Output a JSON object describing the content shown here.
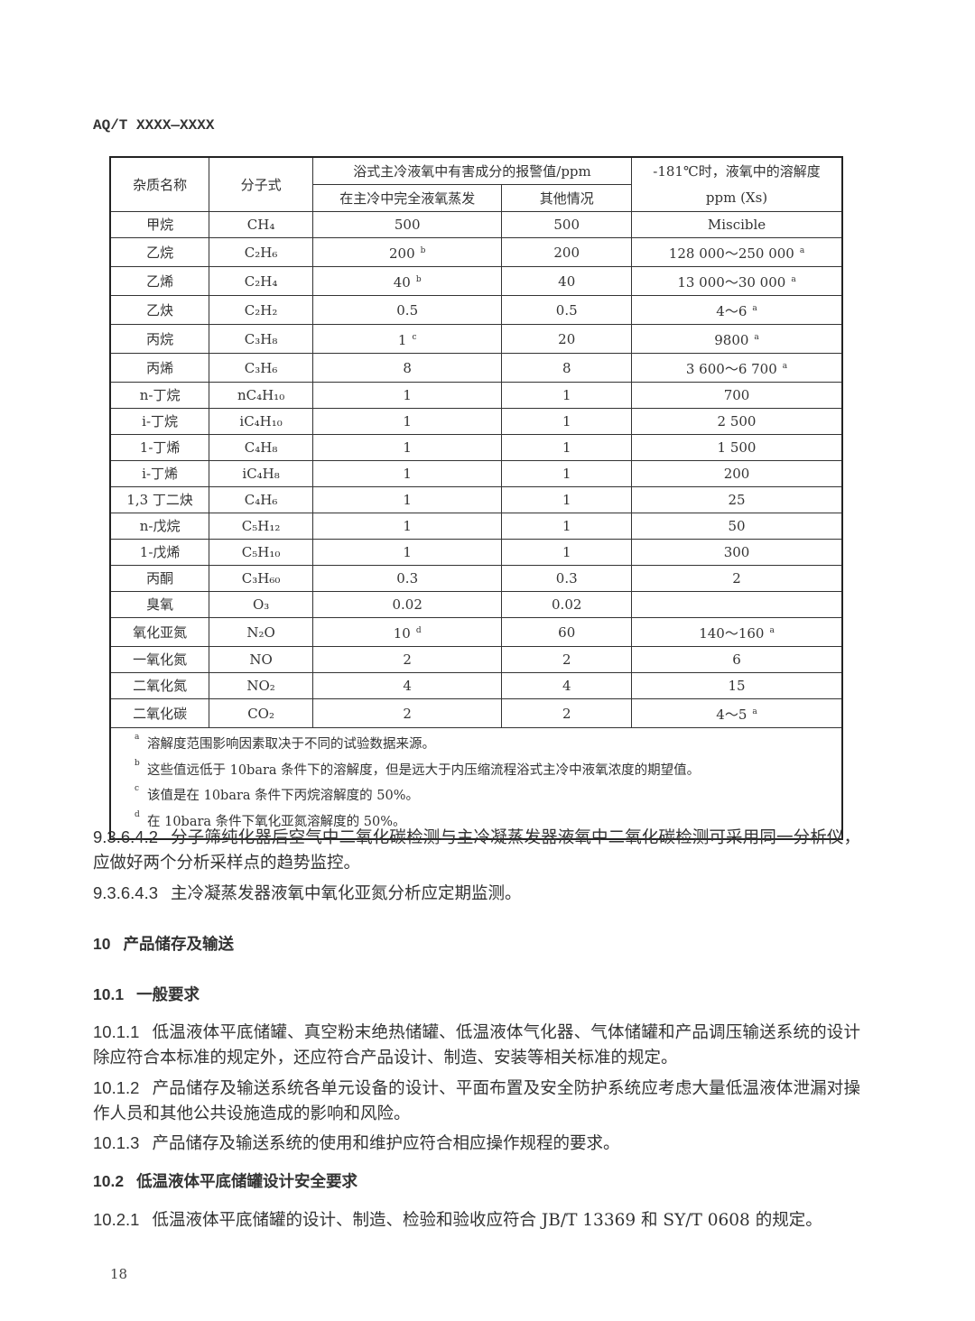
{
  "header": {
    "doc_code": "AQ/T XXXX—XXXX"
  },
  "table": {
    "headers": {
      "name": "杂质名称",
      "formula": "分子式",
      "alarm_group": "浴式主冷液氧中有害成分的报警值/ppm",
      "alarm_full_evap": "在主冷中完全液氧蒸发",
      "alarm_other": "其他情况",
      "solubility_line1": "-181℃时，液氧中的溶解度",
      "solubility_line2": "ppm (Xs)"
    },
    "rows": [
      {
        "name": "甲烷",
        "formula": "CH₄",
        "full": "500",
        "full_note": "",
        "other": "500",
        "sol": "Miscible",
        "sol_note": ""
      },
      {
        "name": "乙烷",
        "formula": "C₂H₆",
        "full": "200",
        "full_note": "b",
        "other": "200",
        "sol": "128 000～250 000",
        "sol_note": "a"
      },
      {
        "name": "乙烯",
        "formula": "C₂H₄",
        "full": "40",
        "full_note": "b",
        "other": "40",
        "sol": "13 000～30 000",
        "sol_note": "a"
      },
      {
        "name": "乙炔",
        "formula": "C₂H₂",
        "full": "0.5",
        "full_note": "",
        "other": "0.5",
        "sol": "4～6",
        "sol_note": "a"
      },
      {
        "name": "丙烷",
        "formula": "C₃H₈",
        "full": "1",
        "full_note": "c",
        "other": "20",
        "sol": "9800",
        "sol_note": "a"
      },
      {
        "name": "丙烯",
        "formula": "C₃H₆",
        "full": "8",
        "full_note": "",
        "other": "8",
        "sol": "3 600～6 700",
        "sol_note": "a"
      },
      {
        "name": "n-丁烷",
        "formula": "nC₄H₁₀",
        "full": "1",
        "full_note": "",
        "other": "1",
        "sol": "700",
        "sol_note": ""
      },
      {
        "name": "i-丁烷",
        "formula": "iC₄H₁₀",
        "full": "1",
        "full_note": "",
        "other": "1",
        "sol": "2 500",
        "sol_note": ""
      },
      {
        "name": "1-丁烯",
        "formula": "C₄H₈",
        "full": "1",
        "full_note": "",
        "other": "1",
        "sol": "1 500",
        "sol_note": ""
      },
      {
        "name": "i-丁烯",
        "formula": "iC₄H₈",
        "full": "1",
        "full_note": "",
        "other": "1",
        "sol": "200",
        "sol_note": ""
      },
      {
        "name": "1,3 丁二炔",
        "formula": "C₄H₆",
        "full": "1",
        "full_note": "",
        "other": "1",
        "sol": "25",
        "sol_note": ""
      },
      {
        "name": "n-戊烷",
        "formula": "C₅H₁₂",
        "full": "1",
        "full_note": "",
        "other": "1",
        "sol": "50",
        "sol_note": ""
      },
      {
        "name": "1-戊烯",
        "formula": "C₅H₁₀",
        "full": "1",
        "full_note": "",
        "other": "1",
        "sol": "300",
        "sol_note": ""
      },
      {
        "name": "丙酮",
        "formula": "C₃H₆₀",
        "full": "0.3",
        "full_note": "",
        "other": "0.3",
        "sol": "2",
        "sol_note": ""
      },
      {
        "name": "臭氧",
        "formula": "O₃",
        "full": "0.02",
        "full_note": "",
        "other": "0.02",
        "sol": "",
        "sol_note": ""
      },
      {
        "name": "氧化亚氮",
        "formula": "N₂O",
        "full": "10",
        "full_note": "d",
        "other": "60",
        "sol": "140～160",
        "sol_note": "a"
      },
      {
        "name": "一氧化氮",
        "formula": "NO",
        "full": "2",
        "full_note": "",
        "other": "2",
        "sol": "6",
        "sol_note": ""
      },
      {
        "name": "二氧化氮",
        "formula": "NO₂",
        "full": "4",
        "full_note": "",
        "other": "4",
        "sol": "15",
        "sol_note": ""
      },
      {
        "name": "二氧化碳",
        "formula": "CO₂",
        "full": "2",
        "full_note": "",
        "other": "2",
        "sol": "4～5",
        "sol_note": "a"
      }
    ],
    "notes": [
      {
        "mark": "a",
        "text": "溶解度范围影响因素取决于不同的试验数据来源。"
      },
      {
        "mark": "b",
        "text": "这些值远低于 10bara 条件下的溶解度，但是远大于内压缩流程浴式主冷中液氧浓度的期望值。"
      },
      {
        "mark": "c",
        "text": "该值是在 10bara 条件下丙烷溶解度的 50%。"
      },
      {
        "mark": "d",
        "text": "在 10bara 条件下氧化亚氮溶解度的 50%。"
      }
    ]
  },
  "paragraphs": [
    {
      "num": "9.3.6.4.2",
      "text": "分子筛纯化器后空气中二氧化碳检测与主冷凝蒸发器液氧中二氧化碳检测可采用同一分析仪，应做好两个分析采样点的趋势监控。",
      "heading": false
    },
    {
      "num": "9.3.6.4.3",
      "text": "主冷凝蒸发器液氧中氧化亚氮分析应定期监测。",
      "heading": false
    },
    {
      "num": "10",
      "text": "产品储存及输送",
      "heading": true
    },
    {
      "num": "10.1",
      "text": "一般要求",
      "heading": true
    },
    {
      "num": "10.1.1",
      "text": "低温液体平底储罐、真空粉末绝热储罐、低温液体气化器、气体储罐和产品调压输送系统的设计除应符合本标准的规定外，还应符合产品设计、制造、安装等相关标准的规定。",
      "heading": false
    },
    {
      "num": "10.1.2",
      "text": "产品储存及输送系统各单元设备的设计、平面布置及安全防护系统应考虑大量低温液体泄漏对操作人员和其他公共设施造成的影响和风险。",
      "heading": false
    },
    {
      "num": "10.1.3",
      "text": "产品储存及输送系统的使用和维护应符合相应操作规程的要求。",
      "heading": false
    },
    {
      "num": "10.2",
      "text": "低温液体平底储罐设计安全要求",
      "heading": true
    },
    {
      "num": "10.2.1",
      "text": "低温液体平底储罐的设计、制造、检验和验收应符合 JB/T 13369 和 SY/T 0608 的规定。",
      "heading": false
    }
  ],
  "footer": {
    "page_number": "18"
  }
}
